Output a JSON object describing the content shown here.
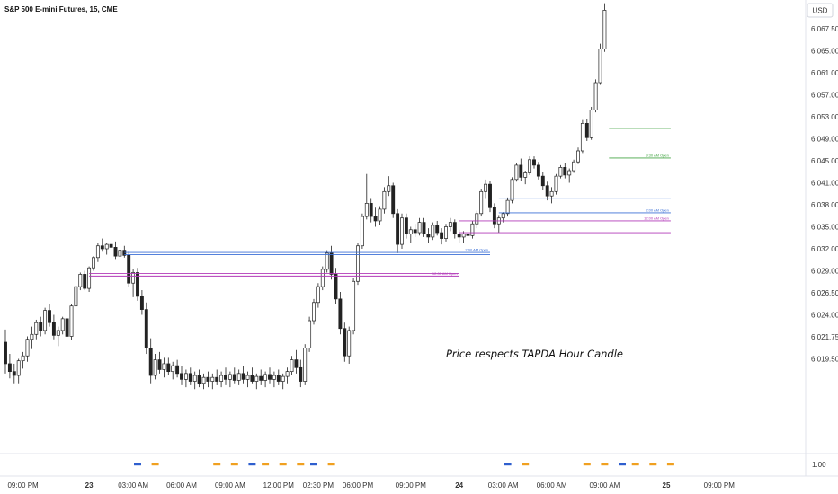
{
  "chart_data": {
    "type": "candlestick",
    "title": "S&P 500 E-mini Futures, 15, CME",
    "currency": "USD",
    "y_ticks": [
      "6,067.50",
      "6,065.00",
      "6,061.00",
      "6,057.00",
      "6,053.00",
      "6,049.00",
      "6,045.00",
      "6,041.00",
      "6,038.00",
      "6,035.00",
      "6,032.00",
      "6,029.00",
      "6,026.50",
      "6,024.00",
      "6,021.75",
      "6,019.50"
    ],
    "y_ticks_values": [
      6067.5,
      6065.0,
      6061.0,
      6057.0,
      6053.0,
      6049.0,
      6045.0,
      6041.0,
      6038.0,
      6035.0,
      6032.0,
      6029.0,
      6026.5,
      6024.0,
      6021.75,
      6019.5
    ],
    "indicator_tick": "1.00",
    "x_ticks": [
      {
        "label": "09:00 PM",
        "i": 4,
        "bold": false
      },
      {
        "label": "23",
        "i": 19,
        "bold": true
      },
      {
        "label": "03:00 AM",
        "i": 29,
        "bold": false
      },
      {
        "label": "06:00 AM",
        "i": 40,
        "bold": false
      },
      {
        "label": "09:00 AM",
        "i": 51,
        "bold": false
      },
      {
        "label": "12:00 PM",
        "i": 62,
        "bold": false
      },
      {
        "label": "02:30 PM",
        "i": 71,
        "bold": false
      },
      {
        "label": "06:00 PM",
        "i": 80,
        "bold": false
      },
      {
        "label": "09:00 PM",
        "i": 92,
        "bold": false
      },
      {
        "label": "24",
        "i": 103,
        "bold": true
      },
      {
        "label": "03:00 AM",
        "i": 113,
        "bold": false
      },
      {
        "label": "06:00 AM",
        "i": 124,
        "bold": false
      },
      {
        "label": "09:00 AM",
        "i": 136,
        "bold": false
      },
      {
        "label": "25",
        "i": 150,
        "bold": true
      },
      {
        "label": "09:00 PM",
        "i": 162,
        "bold": false
      }
    ],
    "annotation": "Price respects TAPDA Hour Candle",
    "level_lines": [
      {
        "label": "2:00 AM Open",
        "value": 6031.5,
        "i_start": 27,
        "i_end": 110,
        "color": "#3b6fd6"
      },
      {
        "label": "",
        "value": 6031.2,
        "i_start": 27,
        "i_end": 110,
        "color": "#3b6fd6"
      },
      {
        "label": "12:00 AM Open",
        "value": 6028.4,
        "i_start": 19,
        "i_end": 103,
        "color": "#b23ab8"
      },
      {
        "label": "",
        "value": 6028.7,
        "i_start": 19,
        "i_end": 103,
        "color": "#b23ab8"
      },
      {
        "label": "",
        "value": 6038.9,
        "i_start": 112,
        "i_end": 151,
        "color": "#3b6fd6"
      },
      {
        "label": "2:00 AM Open",
        "value": 6036.9,
        "i_start": 112,
        "i_end": 151,
        "color": "#3b6fd6"
      },
      {
        "label": "12:00 AM Open",
        "value": 6035.8,
        "i_start": 103,
        "i_end": 151,
        "color": "#b23ab8"
      },
      {
        "label": "",
        "value": 6034.2,
        "i_start": 103,
        "i_end": 151,
        "color": "#b23ab8"
      },
      {
        "label": "",
        "value": 6050.9,
        "i_start": 137,
        "i_end": 151,
        "color": "#44a544"
      },
      {
        "label": "9:30 AM Open",
        "value": 6045.5,
        "i_start": 137,
        "i_end": 151,
        "color": "#44a544"
      }
    ],
    "session_markers": [
      {
        "i": 30,
        "color": "#2f5fce"
      },
      {
        "i": 34,
        "color": "#f0a020"
      },
      {
        "i": 48,
        "color": "#f0a020"
      },
      {
        "i": 52,
        "color": "#f0a020"
      },
      {
        "i": 56,
        "color": "#2f5fce"
      },
      {
        "i": 59,
        "color": "#f0a020"
      },
      {
        "i": 63,
        "color": "#f0a020"
      },
      {
        "i": 67,
        "color": "#f0a020"
      },
      {
        "i": 70,
        "color": "#2f5fce"
      },
      {
        "i": 74,
        "color": "#f0a020"
      },
      {
        "i": 114,
        "color": "#2f5fce"
      },
      {
        "i": 118,
        "color": "#f0a020"
      },
      {
        "i": 132,
        "color": "#f0a020"
      },
      {
        "i": 136,
        "color": "#f0a020"
      },
      {
        "i": 140,
        "color": "#2f5fce"
      },
      {
        "i": 143,
        "color": "#f0a020"
      },
      {
        "i": 147,
        "color": "#f0a020"
      },
      {
        "i": 151,
        "color": "#f0a020"
      }
    ],
    "candles": [
      [
        6021.2,
        6022.5,
        6018.0,
        6019.0
      ],
      [
        6019.0,
        6020.0,
        6017.5,
        6018.2
      ],
      [
        6018.2,
        6019.0,
        6017.0,
        6017.8
      ],
      [
        6017.8,
        6019.5,
        6017.0,
        6019.3
      ],
      [
        6019.3,
        6020.2,
        6018.5,
        6019.8
      ],
      [
        6019.8,
        6021.8,
        6019.2,
        6021.5
      ],
      [
        6021.5,
        6022.8,
        6020.5,
        6022.0
      ],
      [
        6022.0,
        6023.5,
        6021.5,
        6023.2
      ],
      [
        6023.2,
        6023.8,
        6021.8,
        6022.4
      ],
      [
        6022.4,
        6024.8,
        6022.0,
        6024.5
      ],
      [
        6024.5,
        6025.2,
        6022.8,
        6023.2
      ],
      [
        6023.2,
        6024.0,
        6021.5,
        6021.9
      ],
      [
        6021.9,
        6022.8,
        6020.8,
        6022.4
      ],
      [
        6022.4,
        6023.8,
        6022.0,
        6023.6
      ],
      [
        6023.6,
        6024.2,
        6021.5,
        6021.8
      ],
      [
        6021.8,
        6025.2,
        6021.4,
        6025.0
      ],
      [
        6025.0,
        6027.5,
        6024.6,
        6027.2
      ],
      [
        6027.2,
        6028.8,
        6026.8,
        6028.6
      ],
      [
        6028.6,
        6029.0,
        6026.8,
        6027.0
      ],
      [
        6027.0,
        6029.6,
        6026.6,
        6029.4
      ],
      [
        6029.4,
        6031.0,
        6029.0,
        6030.8
      ],
      [
        6030.8,
        6032.8,
        6030.2,
        6032.4
      ],
      [
        6032.4,
        6033.4,
        6031.6,
        6032.0
      ],
      [
        6032.0,
        6032.8,
        6031.2,
        6032.6
      ],
      [
        6032.6,
        6033.6,
        6032.0,
        6032.2
      ],
      [
        6032.2,
        6033.0,
        6030.6,
        6031.0
      ],
      [
        6031.0,
        6032.0,
        6030.4,
        6031.8
      ],
      [
        6031.8,
        6032.4,
        6030.8,
        6031.1
      ],
      [
        6031.1,
        6031.6,
        6027.2,
        6027.6
      ],
      [
        6027.6,
        6029.2,
        6026.0,
        6028.8
      ],
      [
        6028.8,
        6029.4,
        6025.6,
        6026.1
      ],
      [
        6026.1,
        6026.8,
        6024.0,
        6024.6
      ],
      [
        6024.6,
        6025.4,
        6020.0,
        6020.6
      ],
      [
        6020.6,
        6021.6,
        6017.0,
        6017.8
      ],
      [
        6017.8,
        6020.0,
        6017.4,
        6019.4
      ],
      [
        6019.4,
        6020.2,
        6018.0,
        6018.4
      ],
      [
        6018.4,
        6019.6,
        6017.6,
        6019.0
      ],
      [
        6019.0,
        6019.6,
        6017.8,
        6018.2
      ],
      [
        6018.2,
        6019.2,
        6017.4,
        6018.8
      ],
      [
        6018.8,
        6019.4,
        6017.6,
        6018.0
      ],
      [
        6018.0,
        6018.8,
        6016.8,
        6017.4
      ],
      [
        6017.4,
        6018.4,
        6016.6,
        6018.0
      ],
      [
        6018.0,
        6018.6,
        6016.8,
        6017.2
      ],
      [
        6017.2,
        6018.2,
        6016.4,
        6017.8
      ],
      [
        6017.8,
        6018.4,
        6016.6,
        6017.0
      ],
      [
        6017.0,
        6018.0,
        6016.4,
        6017.6
      ],
      [
        6017.6,
        6018.2,
        6016.6,
        6017.2
      ],
      [
        6017.2,
        6018.0,
        6016.4,
        6017.6
      ],
      [
        6017.6,
        6018.4,
        6016.8,
        6017.2
      ],
      [
        6017.2,
        6018.2,
        6016.6,
        6017.8
      ],
      [
        6017.8,
        6018.6,
        6016.8,
        6017.4
      ],
      [
        6017.4,
        6018.2,
        6016.6,
        6017.9
      ],
      [
        6017.9,
        6018.6,
        6017.0,
        6017.3
      ],
      [
        6017.3,
        6018.4,
        6016.8,
        6018.0
      ],
      [
        6018.0,
        6018.8,
        6017.0,
        6017.4
      ],
      [
        6017.4,
        6018.2,
        6016.6,
        6017.8
      ],
      [
        6017.8,
        6018.6,
        6017.0,
        6017.2
      ],
      [
        6017.2,
        6018.0,
        6016.4,
        6017.7
      ],
      [
        6017.7,
        6018.4,
        6016.8,
        6017.3
      ],
      [
        6017.3,
        6018.2,
        6016.6,
        6017.9
      ],
      [
        6017.9,
        6018.6,
        6017.0,
        6017.4
      ],
      [
        6017.4,
        6018.2,
        6016.6,
        6017.8
      ],
      [
        6017.8,
        6018.4,
        6016.8,
        6017.2
      ],
      [
        6017.2,
        6018.0,
        6016.4,
        6017.7
      ],
      [
        6017.7,
        6018.6,
        6017.0,
        6018.2
      ],
      [
        6018.2,
        6019.8,
        6017.8,
        6019.4
      ],
      [
        6019.4,
        6020.4,
        6018.0,
        6018.6
      ],
      [
        6018.6,
        6019.4,
        6016.6,
        6017.2
      ],
      [
        6017.2,
        6021.0,
        6016.8,
        6020.6
      ],
      [
        6020.6,
        6023.8,
        6020.2,
        6023.4
      ],
      [
        6023.4,
        6025.8,
        6023.0,
        6025.4
      ],
      [
        6025.4,
        6027.6,
        6024.8,
        6027.2
      ],
      [
        6027.2,
        6029.6,
        6026.8,
        6029.2
      ],
      [
        6029.2,
        6031.8,
        6028.8,
        6031.4
      ],
      [
        6031.4,
        6032.4,
        6028.0,
        6028.6
      ],
      [
        6028.6,
        6029.4,
        6025.2,
        6025.8
      ],
      [
        6025.8,
        6026.6,
        6022.0,
        6022.6
      ],
      [
        6022.6,
        6023.2,
        6019.2,
        6019.8
      ],
      [
        6019.8,
        6022.8,
        6019.0,
        6022.4
      ],
      [
        6022.4,
        6028.2,
        6022.0,
        6027.8
      ],
      [
        6027.8,
        6032.8,
        6027.4,
        6032.4
      ],
      [
        6032.4,
        6036.8,
        6032.0,
        6036.4
      ],
      [
        6036.4,
        6042.6,
        6036.0,
        6038.2
      ],
      [
        6038.2,
        6038.8,
        6035.6,
        6036.4
      ],
      [
        6036.4,
        6037.6,
        6035.0,
        6035.8
      ],
      [
        6035.8,
        6037.8,
        6035.2,
        6037.4
      ],
      [
        6037.4,
        6040.4,
        6036.8,
        6039.8
      ],
      [
        6039.8,
        6042.2,
        6039.2,
        6040.6
      ],
      [
        6040.6,
        6041.0,
        6036.2,
        6036.8
      ],
      [
        6036.8,
        6037.4,
        6031.4,
        6032.6
      ],
      [
        6032.6,
        6036.8,
        6032.0,
        6036.2
      ],
      [
        6036.2,
        6036.8,
        6033.4,
        6034.0
      ],
      [
        6034.0,
        6035.0,
        6032.8,
        6034.6
      ],
      [
        6034.6,
        6035.4,
        6033.6,
        6034.2
      ],
      [
        6034.2,
        6036.2,
        6033.8,
        6035.6
      ],
      [
        6035.6,
        6036.2,
        6033.6,
        6034.0
      ],
      [
        6034.0,
        6034.8,
        6032.8,
        6033.6
      ],
      [
        6033.6,
        6035.6,
        6033.2,
        6035.2
      ],
      [
        6035.2,
        6035.8,
        6033.8,
        6034.2
      ],
      [
        6034.2,
        6034.8,
        6032.6,
        6033.4
      ],
      [
        6033.4,
        6035.4,
        6033.0,
        6035.0
      ],
      [
        6035.0,
        6036.2,
        6034.4,
        6035.6
      ],
      [
        6035.6,
        6036.0,
        6033.4,
        6034.0
      ],
      [
        6034.0,
        6034.6,
        6032.8,
        6033.6
      ],
      [
        6033.6,
        6034.4,
        6032.8,
        6034.0
      ],
      [
        6034.0,
        6034.8,
        6033.4,
        6033.8
      ],
      [
        6033.8,
        6035.8,
        6033.4,
        6035.4
      ],
      [
        6035.4,
        6037.2,
        6034.8,
        6036.8
      ],
      [
        6036.8,
        6040.2,
        6036.4,
        6039.8
      ],
      [
        6039.8,
        6041.6,
        6038.8,
        6040.8
      ],
      [
        6040.8,
        6041.4,
        6037.0,
        6037.6
      ],
      [
        6037.6,
        6038.2,
        6034.8,
        6035.4
      ],
      [
        6035.4,
        6036.6,
        6034.2,
        6036.2
      ],
      [
        6036.2,
        6037.0,
        6035.6,
        6036.8
      ],
      [
        6036.8,
        6039.0,
        6036.4,
        6038.6
      ],
      [
        6038.6,
        6042.0,
        6038.2,
        6041.6
      ],
      [
        6041.6,
        6044.6,
        6041.2,
        6044.2
      ],
      [
        6044.2,
        6045.4,
        6041.4,
        6042.0
      ],
      [
        6042.0,
        6043.2,
        6040.8,
        6042.8
      ],
      [
        6042.8,
        6045.8,
        6042.4,
        6045.2
      ],
      [
        6045.2,
        6045.8,
        6043.6,
        6044.2
      ],
      [
        6044.2,
        6044.8,
        6041.6,
        6042.2
      ],
      [
        6042.2,
        6043.0,
        6040.0,
        6040.6
      ],
      [
        6040.6,
        6041.2,
        6038.6,
        6039.2
      ],
      [
        6039.2,
        6040.4,
        6038.2,
        6039.8
      ],
      [
        6039.8,
        6042.6,
        6039.4,
        6042.2
      ],
      [
        6042.2,
        6044.2,
        6041.8,
        6043.8
      ],
      [
        6043.8,
        6044.6,
        6041.8,
        6042.4
      ],
      [
        6042.4,
        6043.6,
        6041.0,
        6043.2
      ],
      [
        6043.2,
        6045.2,
        6042.8,
        6044.8
      ],
      [
        6044.8,
        6047.4,
        6044.4,
        6046.8
      ],
      [
        6046.8,
        6052.4,
        6046.4,
        6051.8
      ],
      [
        6051.8,
        6052.6,
        6048.6,
        6049.2
      ],
      [
        6049.2,
        6054.8,
        6048.8,
        6054.2
      ],
      [
        6054.2,
        6059.8,
        6053.8,
        6059.2
      ],
      [
        6059.2,
        6065.8,
        6058.8,
        6065.2
      ],
      [
        6065.2,
        6070.4,
        6064.8,
        6069.6
      ]
    ]
  }
}
